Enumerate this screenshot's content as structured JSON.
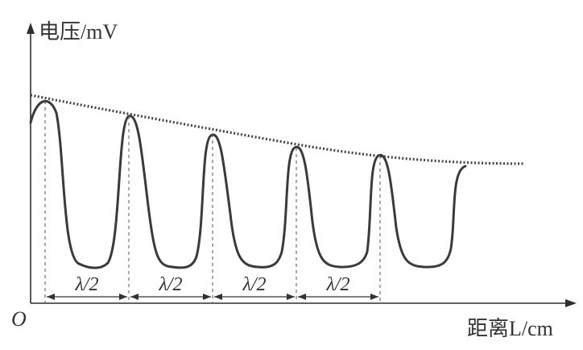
{
  "axes": {
    "y_label": "电压/mV",
    "x_label": "距离L/cm",
    "origin_label": "O"
  },
  "interval_labels": [
    "λ/2",
    "λ/2",
    "λ/2",
    "λ/2"
  ]
}
